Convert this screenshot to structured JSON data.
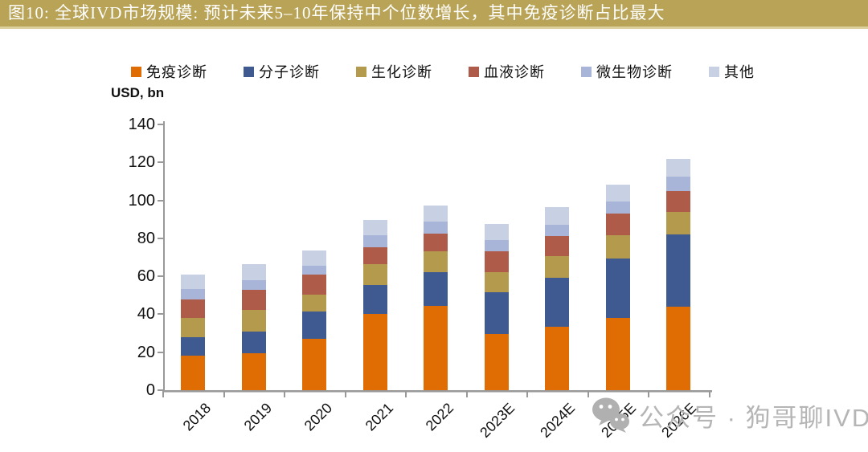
{
  "header": {
    "title": "图10:  全球IVD市场规模:  预计未来5–10年保持中个位数增长，其中免疫诊断占比最大",
    "bg_color": "#B9A356",
    "stripe_color": "#DCD09C"
  },
  "watermark": {
    "text": "公众号 · 狗哥聊IVD",
    "icon": "wechat-icon",
    "color": "#b5b5b5"
  },
  "chart_data": {
    "type": "bar",
    "stacked": true,
    "unit_label": "USD, bn",
    "categories": [
      "2018",
      "2019",
      "2020",
      "2021",
      "2022",
      "2023E",
      "2024E",
      "2025E",
      "2026E"
    ],
    "series": [
      {
        "name": "免疫诊断",
        "color": "#E06C04",
        "values": [
          18,
          19.5,
          27,
          40,
          44.5,
          29.5,
          33.5,
          38,
          44
        ]
      },
      {
        "name": "分子诊断",
        "color": "#3F5A90",
        "values": [
          10,
          11.5,
          14.5,
          15.5,
          17.5,
          22,
          25.5,
          31.5,
          38
        ]
      },
      {
        "name": "生化诊断",
        "color": "#B39A4D",
        "values": [
          10,
          11.5,
          9,
          11,
          11,
          10.5,
          11.5,
          12,
          12
        ]
      },
      {
        "name": "血液诊断",
        "color": "#AF5B49",
        "values": [
          10,
          10.5,
          10.5,
          9,
          9.5,
          11,
          10.5,
          11.5,
          11
        ]
      },
      {
        "name": "微生物诊断",
        "color": "#A9B5D8",
        "values": [
          5.5,
          5,
          4.5,
          6,
          6.5,
          6,
          6,
          6.5,
          7.5
        ]
      },
      {
        "name": "其他",
        "color": "#C8D1E4",
        "values": [
          7.5,
          8.5,
          8,
          8,
          8.5,
          8.5,
          9.5,
          9,
          9.5
        ]
      }
    ],
    "totals": [
      61,
      66.5,
      73.5,
      89.5,
      97.5,
      87.5,
      96.5,
      108.5,
      122
    ],
    "ylim": [
      0,
      140
    ],
    "yticks": [
      0,
      20,
      40,
      60,
      80,
      100,
      120,
      140
    ],
    "grid": false,
    "legend_position": "top"
  }
}
